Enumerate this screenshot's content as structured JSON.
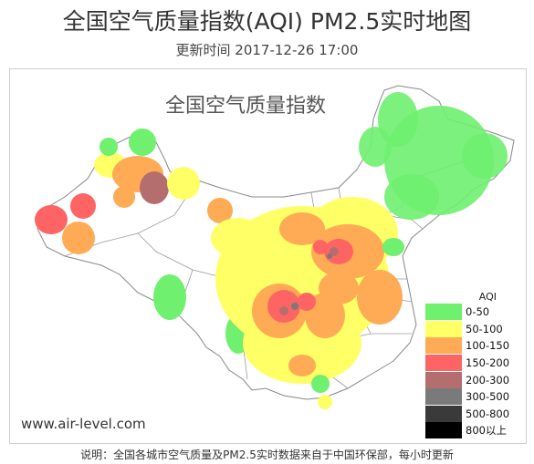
{
  "header": {
    "title": "全国空气质量指数(AQI) PM2.5实时地图",
    "updated": "更新时间 2017-12-26 17:00"
  },
  "map": {
    "title": "全国空气质量指数",
    "watermark": "www.air-level.com"
  },
  "legend": {
    "title": "AQI",
    "items": [
      {
        "label": "0-50",
        "color": "#6ff06f"
      },
      {
        "label": "50-100",
        "color": "#ffff66"
      },
      {
        "label": "100-150",
        "color": "#ffaa55"
      },
      {
        "label": "150-200",
        "color": "#ff6464"
      },
      {
        "label": "200-300",
        "color": "#b46e6e"
      },
      {
        "label": "300-500",
        "color": "#7a7a7a"
      },
      {
        "label": "500-800",
        "color": "#3a3a3a"
      },
      {
        "label": "800以上",
        "color": "#000000"
      }
    ]
  },
  "footnote": "说明：全国各城市空气质量及PM2.5实时数据来自于中国环保部，每小时更新"
}
